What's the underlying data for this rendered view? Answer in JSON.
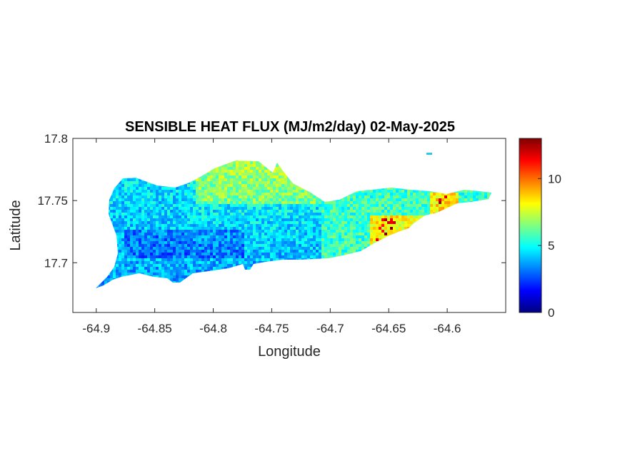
{
  "chart_data": {
    "type": "heatmap",
    "title": "SENSIBLE HEAT FLUX (MJ/m2/day) 02-May-2025",
    "xlabel": "Longitude",
    "ylabel": "Latitude",
    "xlim": [
      -64.92,
      -64.55
    ],
    "ylim": [
      17.66,
      17.8
    ],
    "xticks": [
      "-64.9",
      "-64.85",
      "-64.8",
      "-64.75",
      "-64.7",
      "-64.65",
      "-64.6"
    ],
    "yticks": [
      "17.7",
      "17.75",
      "17.8"
    ],
    "colorbar": {
      "colormap": "jet",
      "clim": [
        0,
        13
      ],
      "ticks": [
        "0",
        "5",
        "10"
      ]
    },
    "region": "St. Croix island outline",
    "values_by_zone": [
      {
        "zone": "southwest lowlands",
        "approx_value": 3.5
      },
      {
        "zone": "west-central",
        "approx_value": 4.5
      },
      {
        "zone": "northern ridge",
        "approx_value": 6.5
      },
      {
        "zone": "central east",
        "approx_value": 5.5
      },
      {
        "zone": "east end south coast",
        "approx_value": 9.5
      },
      {
        "zone": "east end hot spots",
        "approx_value": 12
      }
    ],
    "grid": false,
    "legend": "none"
  }
}
